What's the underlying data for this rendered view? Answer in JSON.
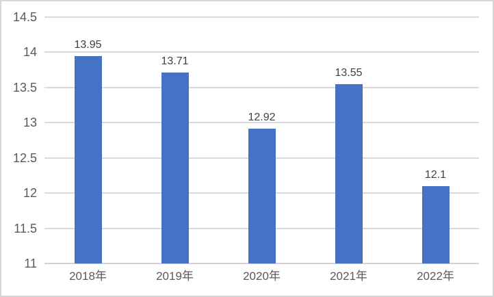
{
  "chart_data": {
    "type": "bar",
    "categories": [
      "2018年",
      "2019年",
      "2020年",
      "2021年",
      "2022年"
    ],
    "values": [
      13.95,
      13.71,
      12.92,
      13.55,
      12.1
    ],
    "data_labels": [
      "13.95",
      "13.71",
      "12.92",
      "13.55",
      "12.1"
    ],
    "title": "",
    "xlabel": "",
    "ylabel": "",
    "ylim": [
      11,
      14.5
    ],
    "ytick_step": 0.5,
    "ytick_labels": [
      "11",
      "11.5",
      "12",
      "12.5",
      "13",
      "13.5",
      "14",
      "14.5"
    ],
    "grid": true,
    "legend_position": "none",
    "colors": {
      "bar": "#4472C4",
      "gridline": "#D9D9D9",
      "axis_text": "#595959",
      "data_label_text": "#404040",
      "background": "#FFFFFF",
      "frame_border": "#D6D6D6"
    }
  }
}
